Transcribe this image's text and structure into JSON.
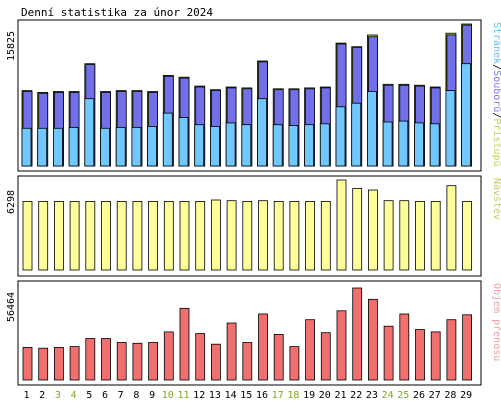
{
  "title": "Denní statistika za únor 2024",
  "colors": {
    "background": "#ffffff",
    "panel_border": "#000000",
    "pristupu": "#a3cf43",
    "souboru": "#7070e8",
    "stranek": "#70c8ff",
    "navstev": "#ffff99",
    "prenos": "#f07070",
    "weekend_label": "#77aa22",
    "weekday_label": "#000000",
    "legend_pristupu": "#b8d45a",
    "legend_souboru": "#7a7ae8",
    "legend_stranek": "#66bbee",
    "legend_navstev": "#c8c86a",
    "legend_prenos": "#f0a0a0"
  },
  "chart_data": [
    {
      "type": "bar",
      "title": "Denní statistika za únor 2024",
      "panel": "hits",
      "x": [
        "1",
        "2",
        "3",
        "4",
        "5",
        "6",
        "7",
        "8",
        "9",
        "10",
        "11",
        "12",
        "13",
        "14",
        "15",
        "16",
        "17",
        "18",
        "19",
        "20",
        "21",
        "22",
        "23",
        "24",
        "25",
        "26",
        "27",
        "28",
        "29"
      ],
      "weekend": [
        false,
        false,
        true,
        true,
        false,
        false,
        false,
        false,
        false,
        true,
        true,
        false,
        false,
        false,
        false,
        false,
        true,
        true,
        false,
        false,
        false,
        false,
        false,
        true,
        true,
        false,
        false,
        false,
        false
      ],
      "ymax_label": "15825",
      "ylim": [
        0,
        15825
      ],
      "series": [
        {
          "name": "Přístupů",
          "values": [
            8400,
            8200,
            8300,
            8300,
            11400,
            8300,
            8400,
            8400,
            8300,
            10100,
            9900,
            8900,
            8500,
            8800,
            8700,
            11700,
            8600,
            8600,
            8700,
            8800,
            13700,
            13300,
            14600,
            9100,
            9100,
            9000,
            8800,
            14800,
            15825
          ]
        },
        {
          "name": "Souborů",
          "values": [
            8300,
            8100,
            8200,
            8200,
            11300,
            8200,
            8300,
            8300,
            8200,
            10000,
            9800,
            8800,
            8400,
            8700,
            8600,
            11600,
            8500,
            8500,
            8600,
            8700,
            13600,
            13200,
            14400,
            9000,
            9000,
            8900,
            8700,
            14600,
            15700
          ]
        },
        {
          "name": "Stránek",
          "values": [
            4200,
            4200,
            4200,
            4300,
            7500,
            4200,
            4300,
            4300,
            4400,
            5900,
            5400,
            4600,
            4400,
            4800,
            4600,
            7500,
            4600,
            4500,
            4600,
            4700,
            6600,
            7000,
            8300,
            4900,
            5000,
            4800,
            4700,
            8400,
            11400
          ]
        }
      ]
    },
    {
      "type": "bar",
      "panel": "visits",
      "x": [
        "1",
        "2",
        "3",
        "4",
        "5",
        "6",
        "7",
        "8",
        "9",
        "10",
        "11",
        "12",
        "13",
        "14",
        "15",
        "16",
        "17",
        "18",
        "19",
        "20",
        "21",
        "22",
        "23",
        "24",
        "25",
        "26",
        "27",
        "28",
        "29"
      ],
      "ymax_label": "6298",
      "ylim": [
        0,
        6298
      ],
      "series": [
        {
          "name": "Návštěv",
          "values": [
            4800,
            4800,
            4800,
            4800,
            4800,
            4800,
            4800,
            4800,
            4800,
            4800,
            4800,
            4800,
            4900,
            4850,
            4800,
            4850,
            4800,
            4800,
            4800,
            4800,
            6298,
            5700,
            5600,
            4850,
            4850,
            4800,
            4800,
            5900,
            4800
          ]
        }
      ]
    },
    {
      "type": "bar",
      "panel": "traffic",
      "x": [
        "1",
        "2",
        "3",
        "4",
        "5",
        "6",
        "7",
        "8",
        "9",
        "10",
        "11",
        "12",
        "13",
        "14",
        "15",
        "16",
        "17",
        "18",
        "19",
        "20",
        "21",
        "22",
        "23",
        "24",
        "25",
        "26",
        "27",
        "28",
        "29"
      ],
      "ymax_label": "56464",
      "ylim": [
        0,
        56464
      ],
      "series": [
        {
          "name": "Objem přenosu",
          "values": [
            20000,
            19500,
            20000,
            20500,
            25500,
            25500,
            23000,
            22500,
            23000,
            29500,
            44000,
            28500,
            22000,
            35000,
            23000,
            40500,
            28000,
            20500,
            37000,
            29000,
            42500,
            56464,
            49500,
            33000,
            40500,
            31000,
            29500,
            37000,
            40000
          ]
        }
      ]
    }
  ]
}
